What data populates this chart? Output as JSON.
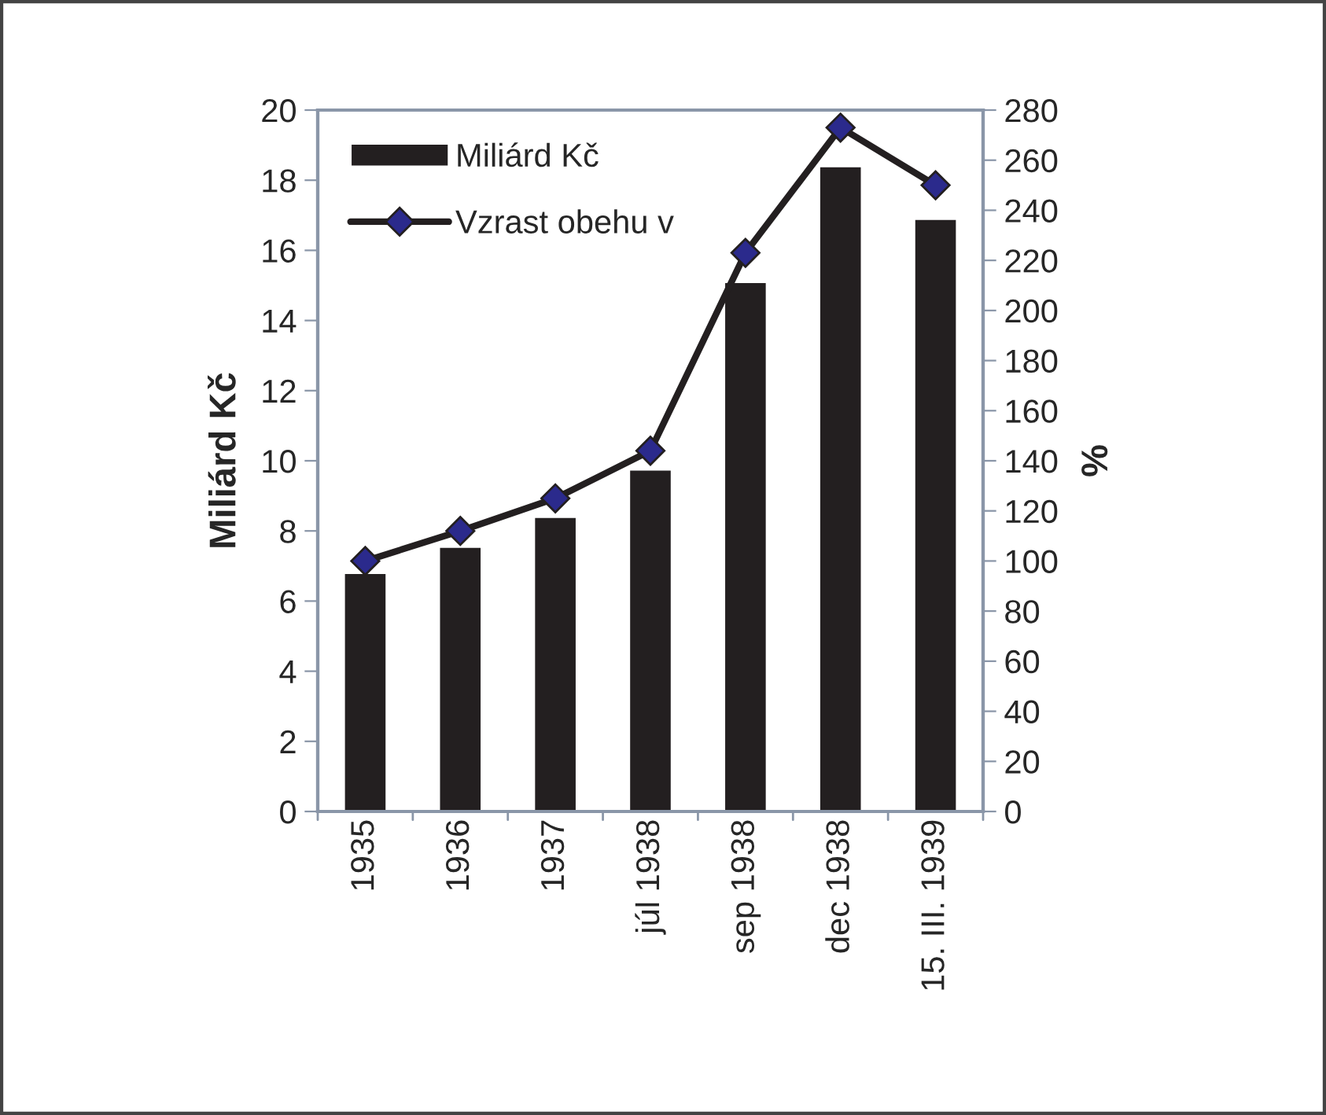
{
  "chart_data": {
    "type": "bar",
    "categories": [
      "1935",
      "1936",
      "1937",
      "júl 1938",
      "sep 1938",
      "dec 1938",
      "15. III. 1939"
    ],
    "series": [
      {
        "name": "Miliárd Kč",
        "color": "#231f20",
        "values": [
          6.8,
          7.55,
          8.4,
          9.75,
          15.1,
          18.4,
          16.9
        ]
      },
      {
        "name": "Vzrast obehu v",
        "type": "line",
        "axis": "y2",
        "color": "#231f20",
        "marker": "diamond",
        "values": [
          100,
          112,
          125,
          144,
          223,
          273,
          250
        ]
      }
    ],
    "ylabel": "Miliárd Kč",
    "y2label": "%",
    "ylim": [
      0,
      20
    ],
    "yticks": [
      0,
      2,
      4,
      6,
      8,
      10,
      12,
      14,
      16,
      18,
      20
    ],
    "y2lim": [
      0,
      280
    ],
    "y2ticks": [
      0,
      20,
      40,
      60,
      80,
      100,
      120,
      140,
      160,
      180,
      200,
      220,
      240,
      260,
      280
    ],
    "legend": "top left",
    "grid": false
  }
}
